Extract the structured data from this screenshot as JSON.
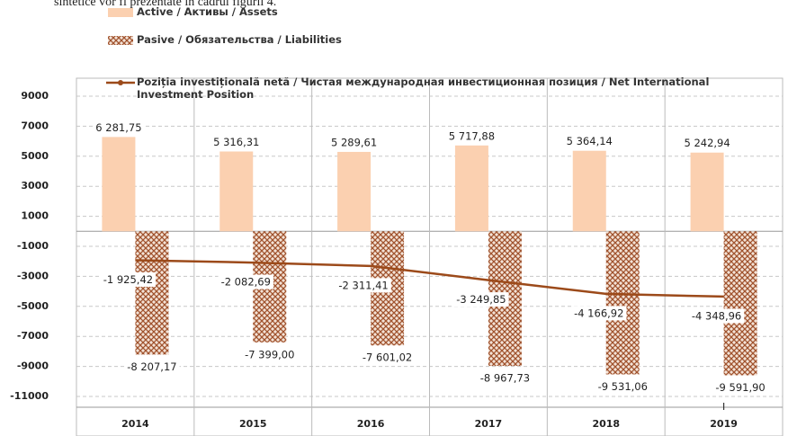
{
  "page_text": "sintetice vor fi prezentate în cadrul figurii 4.",
  "chart_data": {
    "type": "bar",
    "categories": [
      "2014",
      "2015",
      "2016",
      "2017",
      "2018",
      "2019"
    ],
    "series": [
      {
        "name": "Active / Активы / Assets",
        "type": "bar",
        "color": "#fbd0b0",
        "values": [
          6281.75,
          5316.31,
          5289.61,
          5717.88,
          5364.14,
          5242.94
        ],
        "value_labels": [
          "6 281,75",
          "5 316,31",
          "5 289,61",
          "5 717,88",
          "5 364,14",
          "5 242,94"
        ]
      },
      {
        "name": "Pasive / Обязательства / Liabilities",
        "type": "bar",
        "color": "#a0522d",
        "pattern": "crosshatch",
        "values": [
          -8207.17,
          -7399.0,
          -7601.02,
          -8967.73,
          -9531.06,
          -9591.9
        ],
        "value_labels": [
          "-8 207,17",
          "-7 399,00",
          "-7 601,02",
          "-8 967,73",
          "-9 531,06",
          "-9 591,90"
        ]
      },
      {
        "name": "Poziția investițională netă / Чистая международная инвестиционная позиция / Net International Investment Position",
        "type": "line",
        "color": "#9c4a1a",
        "values": [
          -1925.42,
          -2082.69,
          -2311.41,
          -3249.85,
          -4166.92,
          -4348.96
        ],
        "value_labels": [
          "-1 925,42",
          "-2 082,69",
          "-2 311,41",
          "-3 249,85",
          "-4 166,92",
          "-4 348,96"
        ]
      }
    ],
    "ylim": [
      -11000,
      9000
    ],
    "yticks": [
      9000,
      7000,
      5000,
      3000,
      1000,
      -1000,
      -3000,
      -5000,
      -7000,
      -9000,
      -11000
    ],
    "grid": true,
    "annotations": [
      "I"
    ]
  }
}
